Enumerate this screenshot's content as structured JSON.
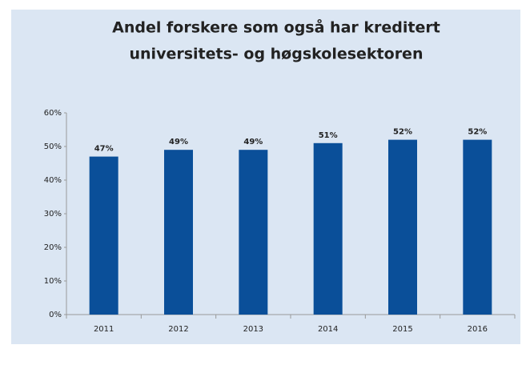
{
  "chart_data": {
    "type": "bar",
    "title": [
      "Andel forskere som også har kreditert",
      "universitets- og høgskolesektoren"
    ],
    "categories": [
      "2011",
      "2012",
      "2013",
      "2014",
      "2015",
      "2016"
    ],
    "values": [
      47,
      49,
      49,
      51,
      52,
      52
    ],
    "value_labels": [
      "47%",
      "49%",
      "49%",
      "51%",
      "52%",
      "52%"
    ],
    "color": "#0a4f99",
    "ylim": [
      0,
      60
    ],
    "yticks": [
      {
        "value": 0,
        "label": "0%"
      },
      {
        "value": 10,
        "label": "10%"
      },
      {
        "value": 20,
        "label": "20%"
      },
      {
        "value": 30,
        "label": "30%"
      },
      {
        "value": 40,
        "label": "40%"
      },
      {
        "value": 50,
        "label": "50%"
      },
      {
        "value": 60,
        "label": "60%"
      }
    ],
    "grid": false
  }
}
